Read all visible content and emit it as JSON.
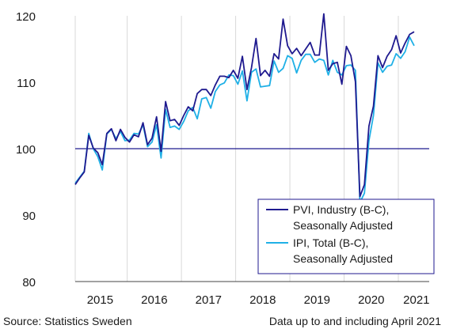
{
  "footer": {
    "source": "Source: Statistics Sweden",
    "note": "Data up to and including April 2021"
  },
  "chart_data": {
    "type": "line",
    "title": "",
    "xlabel": "",
    "ylabel": "",
    "ylim": [
      80,
      120
    ],
    "yticks": [
      80,
      90,
      100,
      110,
      120
    ],
    "x_year_labels": [
      "2015",
      "2016",
      "2017",
      "2018",
      "2019",
      "2020",
      "2021"
    ],
    "x_range": [
      "2015-01",
      "2021-04"
    ],
    "grid": "vertical year separators",
    "reference_line": 100,
    "legend_position": "bottom-right",
    "colors": {
      "pvi": "#1f1a8f",
      "ipi": "#1fb0e6",
      "reference": "#1f1a8f",
      "grid": "#d9d9d9"
    },
    "series": [
      {
        "name": "PVI, Industry (B-C), Seasonally Adjusted",
        "color": "#1f1a8f",
        "start": "2015-01",
        "values": [
          94.6,
          95.6,
          96.5,
          102.0,
          100.1,
          99.4,
          97.6,
          102.3,
          103.0,
          101.2,
          102.9,
          101.7,
          101.0,
          102.1,
          101.8,
          103.9,
          100.6,
          101.6,
          104.8,
          99.6,
          107.1,
          104.2,
          104.4,
          103.5,
          105.0,
          106.3,
          105.7,
          108.3,
          108.9,
          108.9,
          108.0,
          109.6,
          110.9,
          110.9,
          110.7,
          111.8,
          110.6,
          113.9,
          108.9,
          112.2,
          116.6,
          111.0,
          111.8,
          110.9,
          114.3,
          113.5,
          119.5,
          115.5,
          114.3,
          115.1,
          114.0,
          115.0,
          116.0,
          114.1,
          114.1,
          120.3,
          111.8,
          112.8,
          113.0,
          109.7,
          115.4,
          114.0,
          110.1,
          92.8,
          94.6,
          103.4,
          106.4,
          114.0,
          112.2,
          113.9,
          114.9,
          117.0,
          114.4,
          115.9,
          117.2,
          117.6
        ]
      },
      {
        "name": "IPI, Total (B-C), Seasonally Adjusted",
        "color": "#1fb0e6",
        "start": "2015-01",
        "values": [
          94.8,
          95.7,
          96.6,
          102.3,
          100.0,
          98.8,
          96.8,
          102.2,
          102.9,
          101.5,
          102.6,
          101.2,
          101.3,
          102.3,
          102.2,
          103.6,
          100.3,
          101.0,
          103.6,
          98.6,
          105.9,
          103.2,
          103.4,
          102.9,
          104.1,
          105.7,
          106.2,
          104.5,
          107.5,
          107.7,
          106.1,
          108.6,
          109.6,
          109.9,
          111.1,
          111.0,
          109.7,
          111.7,
          107.2,
          111.5,
          112.0,
          109.3,
          109.4,
          109.5,
          113.2,
          111.5,
          112.1,
          114.0,
          113.6,
          111.4,
          113.3,
          114.2,
          114.2,
          113.0,
          113.5,
          113.3,
          111.1,
          113.3,
          111.5,
          111.1,
          112.5,
          112.6,
          111.8,
          91.9,
          93.3,
          101.2,
          105.0,
          112.9,
          111.5,
          112.4,
          112.6,
          114.3,
          113.6,
          114.6,
          116.8,
          115.5
        ]
      }
    ]
  }
}
